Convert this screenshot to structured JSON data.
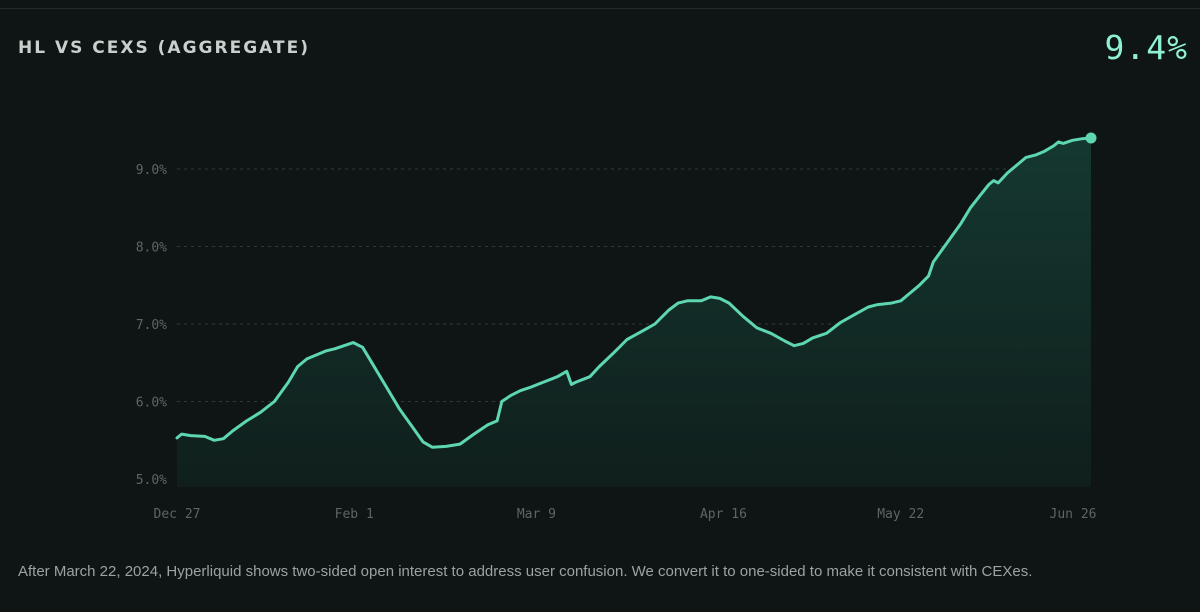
{
  "header": {
    "title": "HL VS CEXS (AGGREGATE)",
    "current_value": "9.4%"
  },
  "footnote": "After March 22, 2024, Hyperliquid shows two-sided open interest to address user confusion. We convert it to one-sided to make it consistent with CEXes.",
  "colors": {
    "background": "#0e1514",
    "line": "#5ed6b2",
    "area": "#13302a",
    "accent": "#8ff0d2",
    "grid": "#2e3a37",
    "axis_text": "#5c6664"
  },
  "chart_data": {
    "type": "area",
    "title": "HL VS CEXS (AGGREGATE)",
    "xlabel": "",
    "ylabel": "",
    "x_range_days": [
      0,
      182
    ],
    "ylim": [
      4.9,
      9.6
    ],
    "y_ticks": [
      {
        "value": 5.0,
        "label": "5.0%"
      },
      {
        "value": 6.0,
        "label": "6.0%"
      },
      {
        "value": 7.0,
        "label": "7.0%"
      },
      {
        "value": 8.0,
        "label": "8.0%"
      },
      {
        "value": 9.0,
        "label": "9.0%"
      }
    ],
    "x_ticks": [
      {
        "value": 0,
        "label": "Dec 27"
      },
      {
        "value": 36,
        "label": "Feb 1"
      },
      {
        "value": 73,
        "label": "Mar 9"
      },
      {
        "value": 111,
        "label": "Apr 16"
      },
      {
        "value": 147,
        "label": "May 22"
      },
      {
        "value": 182,
        "label": "Jun 26"
      }
    ],
    "grid": true,
    "legend": "none",
    "series": [
      {
        "points": [
          [
            0,
            5.53
          ],
          [
            1,
            5.58
          ],
          [
            3,
            5.56
          ],
          [
            6,
            5.55
          ],
          [
            8,
            5.5
          ],
          [
            10,
            5.52
          ],
          [
            12,
            5.62
          ],
          [
            15,
            5.75
          ],
          [
            18,
            5.86
          ],
          [
            21,
            6.0
          ],
          [
            24,
            6.25
          ],
          [
            26,
            6.45
          ],
          [
            28,
            6.55
          ],
          [
            30,
            6.6
          ],
          [
            32,
            6.65
          ],
          [
            34,
            6.68
          ],
          [
            36,
            6.72
          ],
          [
            38,
            6.76
          ],
          [
            40,
            6.7
          ],
          [
            42,
            6.5
          ],
          [
            45,
            6.2
          ],
          [
            48,
            5.9
          ],
          [
            51,
            5.65
          ],
          [
            53,
            5.48
          ],
          [
            55,
            5.41
          ],
          [
            58,
            5.42
          ],
          [
            61,
            5.45
          ],
          [
            64,
            5.58
          ],
          [
            67,
            5.7
          ],
          [
            69,
            5.75
          ],
          [
            70,
            6.0
          ],
          [
            72,
            6.08
          ],
          [
            74,
            6.14
          ],
          [
            76,
            6.18
          ],
          [
            79,
            6.25
          ],
          [
            82,
            6.32
          ],
          [
            84,
            6.39
          ],
          [
            85,
            6.22
          ],
          [
            86,
            6.25
          ],
          [
            89,
            6.32
          ],
          [
            91,
            6.45
          ],
          [
            94,
            6.62
          ],
          [
            97,
            6.8
          ],
          [
            100,
            6.9
          ],
          [
            103,
            7.0
          ],
          [
            106,
            7.18
          ],
          [
            108,
            7.27
          ],
          [
            110,
            7.3
          ],
          [
            113,
            7.3
          ],
          [
            115,
            7.35
          ],
          [
            117,
            7.33
          ],
          [
            119,
            7.27
          ],
          [
            122,
            7.1
          ],
          [
            125,
            6.95
          ],
          [
            128,
            6.88
          ],
          [
            131,
            6.78
          ],
          [
            133,
            6.72
          ],
          [
            135,
            6.75
          ],
          [
            137,
            6.82
          ],
          [
            140,
            6.88
          ],
          [
            143,
            7.02
          ],
          [
            146,
            7.12
          ],
          [
            149,
            7.22
          ],
          [
            151,
            7.25
          ],
          [
            154,
            7.27
          ],
          [
            156,
            7.3
          ],
          [
            158,
            7.4
          ],
          [
            160,
            7.5
          ],
          [
            162,
            7.62
          ],
          [
            163,
            7.8
          ],
          [
            166,
            8.05
          ],
          [
            169,
            8.3
          ],
          [
            171,
            8.5
          ],
          [
            173,
            8.65
          ],
          [
            175,
            8.8
          ],
          [
            176,
            8.85
          ],
          [
            177,
            8.82
          ],
          [
            179,
            8.95
          ],
          [
            181,
            9.05
          ],
          [
            183,
            9.15
          ],
          [
            185,
            9.18
          ],
          [
            187,
            9.23
          ],
          [
            189,
            9.3
          ],
          [
            190,
            9.35
          ],
          [
            191,
            9.33
          ],
          [
            193,
            9.37
          ],
          [
            195,
            9.39
          ],
          [
            197,
            9.4
          ]
        ]
      }
    ]
  }
}
